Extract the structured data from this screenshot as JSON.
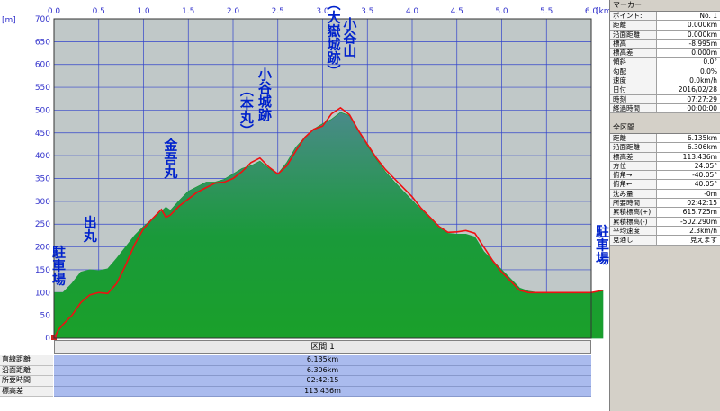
{
  "chart_data": {
    "type": "area",
    "title": "",
    "x_unit": "[km]",
    "y_unit": "[m]",
    "xlim": [
      0,
      6.0
    ],
    "ylim": [
      0,
      700
    ],
    "x_ticks": [
      "0.0",
      "0.5",
      "1.0",
      "1.5",
      "2.0",
      "2.5",
      "3.0",
      "3.5",
      "4.0",
      "4.5",
      "5.0",
      "5.5",
      "6.0"
    ],
    "y_ticks": [
      "0",
      "50",
      "100",
      "150",
      "200",
      "250",
      "300",
      "350",
      "400",
      "450",
      "500",
      "550",
      "600",
      "650",
      "700"
    ],
    "series": [
      {
        "color": "#1a9a3a",
        "x": [
          0,
          0.1,
          0.2,
          0.3,
          0.4,
          0.5,
          0.6,
          0.7,
          0.8,
          0.9,
          1.0,
          1.1,
          1.2,
          1.25,
          1.3,
          1.4,
          1.5,
          1.6,
          1.7,
          1.8,
          1.9,
          2.0,
          2.1,
          2.2,
          2.3,
          2.4,
          2.5,
          2.6,
          2.7,
          2.8,
          2.9,
          3.0,
          3.1,
          3.2,
          3.3,
          3.4,
          3.5,
          3.6,
          3.7,
          3.8,
          3.9,
          4.0,
          4.1,
          4.2,
          4.3,
          4.4,
          4.5,
          4.6,
          4.7,
          4.8,
          4.9,
          5.0,
          5.1,
          5.2,
          5.3,
          5.4,
          5.5,
          5.6,
          5.7,
          5.8,
          5.9,
          6.0,
          6.13
        ],
        "y": [
          100,
          100,
          120,
          145,
          150,
          148,
          152,
          175,
          200,
          225,
          245,
          262,
          278,
          287,
          280,
          302,
          322,
          332,
          342,
          342,
          348,
          360,
          372,
          378,
          388,
          372,
          360,
          385,
          418,
          440,
          458,
          470,
          480,
          495,
          488,
          457,
          422,
          392,
          365,
          343,
          322,
          302,
          282,
          262,
          242,
          230,
          228,
          228,
          222,
          190,
          170,
          150,
          130,
          110,
          103,
          100,
          100,
          100,
          100,
          100,
          100,
          100,
          105
        ]
      },
      {
        "color": "#ee1111",
        "x": [
          0,
          0.05,
          0.1,
          0.2,
          0.3,
          0.4,
          0.5,
          0.6,
          0.7,
          0.8,
          0.9,
          1.0,
          1.1,
          1.2,
          1.25,
          1.3,
          1.4,
          1.5,
          1.6,
          1.7,
          1.8,
          1.9,
          2.0,
          2.1,
          2.2,
          2.3,
          2.4,
          2.5,
          2.6,
          2.7,
          2.8,
          2.9,
          3.0,
          3.1,
          3.2,
          3.3,
          3.4,
          3.5,
          3.6,
          3.7,
          3.8,
          3.9,
          4.0,
          4.1,
          4.2,
          4.3,
          4.4,
          4.5,
          4.6,
          4.7,
          4.8,
          4.9,
          5.0,
          5.1,
          5.2,
          5.3,
          5.4,
          5.5,
          5.6,
          5.7,
          5.8,
          5.9,
          6.0,
          6.13
        ],
        "y": [
          0,
          18,
          30,
          50,
          78,
          95,
          100,
          98,
          120,
          160,
          205,
          240,
          262,
          282,
          265,
          270,
          290,
          305,
          320,
          330,
          340,
          342,
          350,
          365,
          385,
          395,
          375,
          360,
          378,
          410,
          440,
          458,
          465,
          492,
          505,
          490,
          455,
          425,
          395,
          370,
          350,
          330,
          310,
          285,
          265,
          245,
          232,
          233,
          236,
          230,
          200,
          170,
          145,
          125,
          105,
          100,
          100,
          100,
          100,
          100,
          100,
          100,
          100,
          105
        ]
      }
    ],
    "annotations": [
      {
        "text": "駐車場",
        "x": 0.05,
        "y": 160,
        "vertical": true
      },
      {
        "text": "出丸",
        "x": 0.4,
        "y": 240,
        "vertical": true
      },
      {
        "text": "金吾丸",
        "x": 1.3,
        "y": 395,
        "vertical": true
      },
      {
        "text": "小谷城跡",
        "x": 2.35,
        "y": 535,
        "vertical": true
      },
      {
        "text": "（本丸）",
        "x": 2.15,
        "y": 500,
        "vertical": true
      },
      {
        "text": "小谷山",
        "x": 3.3,
        "y": 660,
        "vertical": true
      },
      {
        "text": "（大嶽城跡）",
        "x": 3.12,
        "y": 660,
        "vertical": true
      },
      {
        "text": "駐車場",
        "x": 6.12,
        "y": 205,
        "vertical": true
      }
    ]
  },
  "marker_panel": {
    "title": "マーカー",
    "rows": [
      {
        "k": "ポイント:",
        "v": "No. 1"
      },
      {
        "k": "距離",
        "v": "0.000km"
      },
      {
        "k": "沿面距離",
        "v": "0.000km"
      },
      {
        "k": "標高",
        "v": "-8.995m"
      },
      {
        "k": "標高差",
        "v": "0.000m"
      },
      {
        "k": "傾斜",
        "v": "0.0°"
      },
      {
        "k": "勾配",
        "v": "0.0%"
      },
      {
        "k": "速度",
        "v": "0.0km/h"
      },
      {
        "k": "日付",
        "v": "2016/02/28"
      },
      {
        "k": "時刻",
        "v": "07:27:29"
      },
      {
        "k": "経過時間",
        "v": "00:00:00"
      }
    ]
  },
  "section_panel": {
    "title": "全区間",
    "rows": [
      {
        "k": "距離",
        "v": "6.135km"
      },
      {
        "k": "沿面距離",
        "v": "6.306km"
      },
      {
        "k": "標高差",
        "v": "113.436m"
      },
      {
        "k": "方位",
        "v": "24.05°"
      },
      {
        "k": "俯角→",
        "v": "-40.05°"
      },
      {
        "k": "俯角←",
        "v": "40.05°"
      },
      {
        "k": "沈み量",
        "v": "-0m"
      },
      {
        "k": "所要時間",
        "v": "02:42:15"
      },
      {
        "k": "累積標高(+)",
        "v": "615.725m"
      },
      {
        "k": "累積標高(-)",
        "v": "-502.290m"
      },
      {
        "k": "平均速度",
        "v": "2.3km/h"
      },
      {
        "k": "見通し",
        "v": "見えます"
      }
    ]
  },
  "bottom": {
    "section_label": "区間 1",
    "labels": [
      "直線距離",
      "沿面距離",
      "所要時間",
      "標高差"
    ],
    "values": [
      "6.135km",
      "6.306km",
      "02:42:15",
      "113.436m"
    ]
  }
}
